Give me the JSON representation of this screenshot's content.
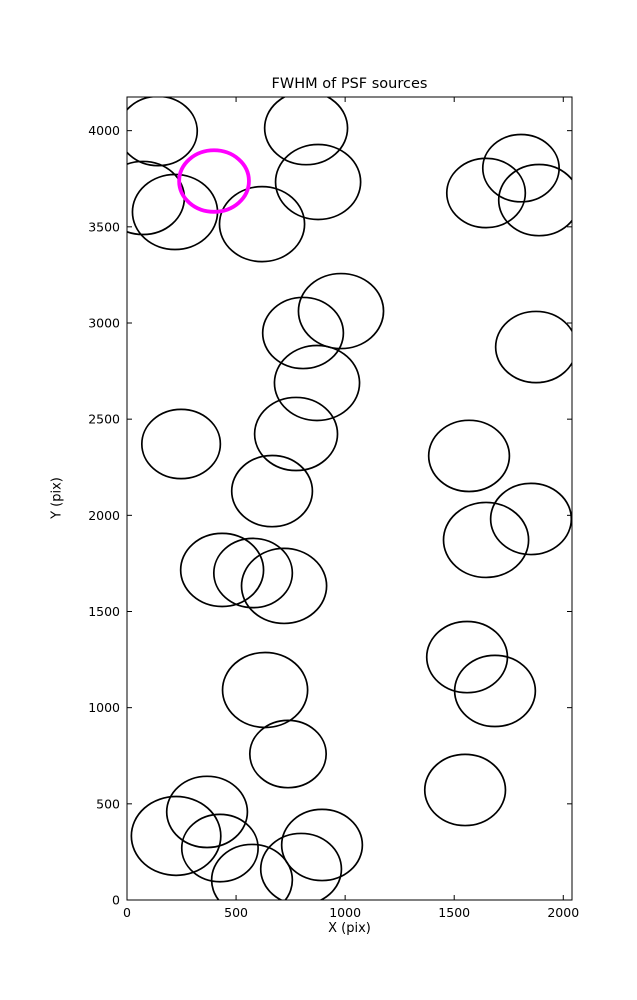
{
  "chart_data": {
    "type": "scatter",
    "title": "FWHM of PSF sources",
    "xlabel": "X (pix)",
    "ylabel": "Y (pix)",
    "xlim": [
      0,
      2040
    ],
    "ylim": [
      0,
      4175
    ],
    "x_ticks": [
      0,
      500,
      1000,
      1500,
      2000
    ],
    "y_ticks": [
      0,
      500,
      1000,
      1500,
      2000,
      2500,
      3000,
      3500,
      4000
    ],
    "grid": false,
    "legend_position": "none",
    "marker_color": "#000000",
    "highlight_color": "#ff00ff",
    "axis_color": "#000000",
    "circles": [
      {
        "x": 142,
        "y": 3998,
        "r": 180
      },
      {
        "x": 73,
        "y": 3650,
        "r": 190
      },
      {
        "x": 220,
        "y": 3577,
        "r": 195
      },
      {
        "x": 619,
        "y": 3514,
        "r": 195
      },
      {
        "x": 821,
        "y": 4013,
        "r": 190
      },
      {
        "x": 876,
        "y": 3733,
        "r": 195
      },
      {
        "x": 1646,
        "y": 3676,
        "r": 180
      },
      {
        "x": 1806,
        "y": 3805,
        "r": 175
      },
      {
        "x": 1889,
        "y": 3639,
        "r": 185
      },
      {
        "x": 981,
        "y": 3062,
        "r": 195
      },
      {
        "x": 807,
        "y": 2948,
        "r": 185
      },
      {
        "x": 871,
        "y": 2688,
        "r": 195
      },
      {
        "x": 1875,
        "y": 2875,
        "r": 185
      },
      {
        "x": 248,
        "y": 2371,
        "r": 180
      },
      {
        "x": 775,
        "y": 2423,
        "r": 190
      },
      {
        "x": 665,
        "y": 2126,
        "r": 185
      },
      {
        "x": 436,
        "y": 1716,
        "r": 190
      },
      {
        "x": 578,
        "y": 1700,
        "r": 180
      },
      {
        "x": 720,
        "y": 1633,
        "r": 195
      },
      {
        "x": 1568,
        "y": 2309,
        "r": 185
      },
      {
        "x": 1646,
        "y": 1872,
        "r": 195
      },
      {
        "x": 1852,
        "y": 1981,
        "r": 185
      },
      {
        "x": 1559,
        "y": 1263,
        "r": 185
      },
      {
        "x": 1687,
        "y": 1087,
        "r": 185
      },
      {
        "x": 633,
        "y": 1092,
        "r": 195
      },
      {
        "x": 738,
        "y": 759,
        "r": 175
      },
      {
        "x": 1550,
        "y": 572,
        "r": 185
      },
      {
        "x": 225,
        "y": 333,
        "r": 205
      },
      {
        "x": 367,
        "y": 458,
        "r": 185
      },
      {
        "x": 426,
        "y": 270,
        "r": 175
      },
      {
        "x": 573,
        "y": 104,
        "r": 185
      },
      {
        "x": 798,
        "y": 161,
        "r": 185
      },
      {
        "x": 894,
        "y": 286,
        "r": 185
      }
    ],
    "highlight_circle": {
      "x": 399,
      "y": 3738,
      "r": 160
    }
  }
}
